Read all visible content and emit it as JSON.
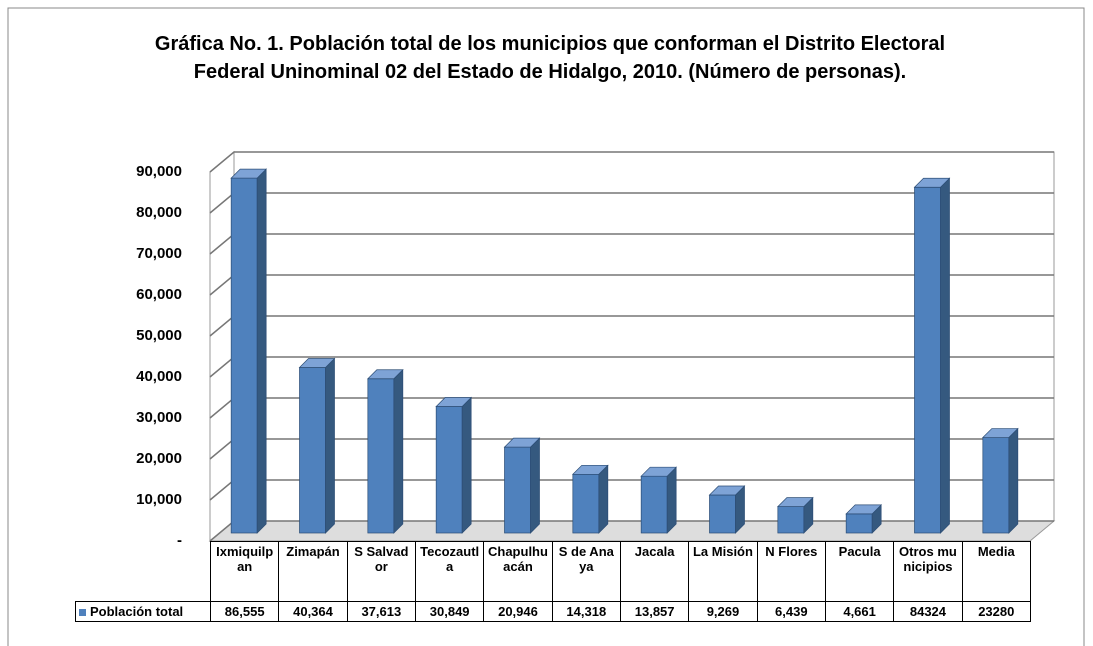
{
  "chart_data": {
    "type": "bar3d",
    "title": "Gráfica No. 1. Población total de los municipios que conforman el Distrito Electoral Federal Uninominal 02 del Estado de Hidalgo, 2010. (Número de personas).",
    "categories": [
      "Ixmiquilpan",
      "Zimapán",
      "S Salvador",
      "Tecozautla",
      "Chapulhuacán",
      "S de Anaya",
      "Jacala",
      "La Misión",
      "N Flores",
      "Pacula",
      "Otros municipios",
      "Media"
    ],
    "series": [
      {
        "name": "Población total",
        "color": "#4f81bd",
        "values": [
          86555,
          40364,
          37613,
          30849,
          20946,
          14318,
          13857,
          9269,
          6439,
          4661,
          84324,
          23280
        ],
        "value_labels": [
          "86,555",
          "40,364",
          "37,613",
          "30,849",
          "20,946",
          "14,318",
          "13,857",
          "9,269",
          "6,439",
          "4,661",
          "84324",
          "23280"
        ]
      }
    ],
    "ylim": [
      0,
      90000
    ],
    "yticks": [
      {
        "value": 0,
        "label": "-"
      },
      {
        "value": 10000,
        "label": "10,000"
      },
      {
        "value": 20000,
        "label": "20,000"
      },
      {
        "value": 30000,
        "label": "30,000"
      },
      {
        "value": 40000,
        "label": "40,000"
      },
      {
        "value": 50000,
        "label": "50,000"
      },
      {
        "value": 60000,
        "label": "60,000"
      },
      {
        "value": 70000,
        "label": "70,000"
      },
      {
        "value": 80000,
        "label": "80,000"
      },
      {
        "value": 90000,
        "label": "90,000"
      }
    ],
    "grid": true
  }
}
